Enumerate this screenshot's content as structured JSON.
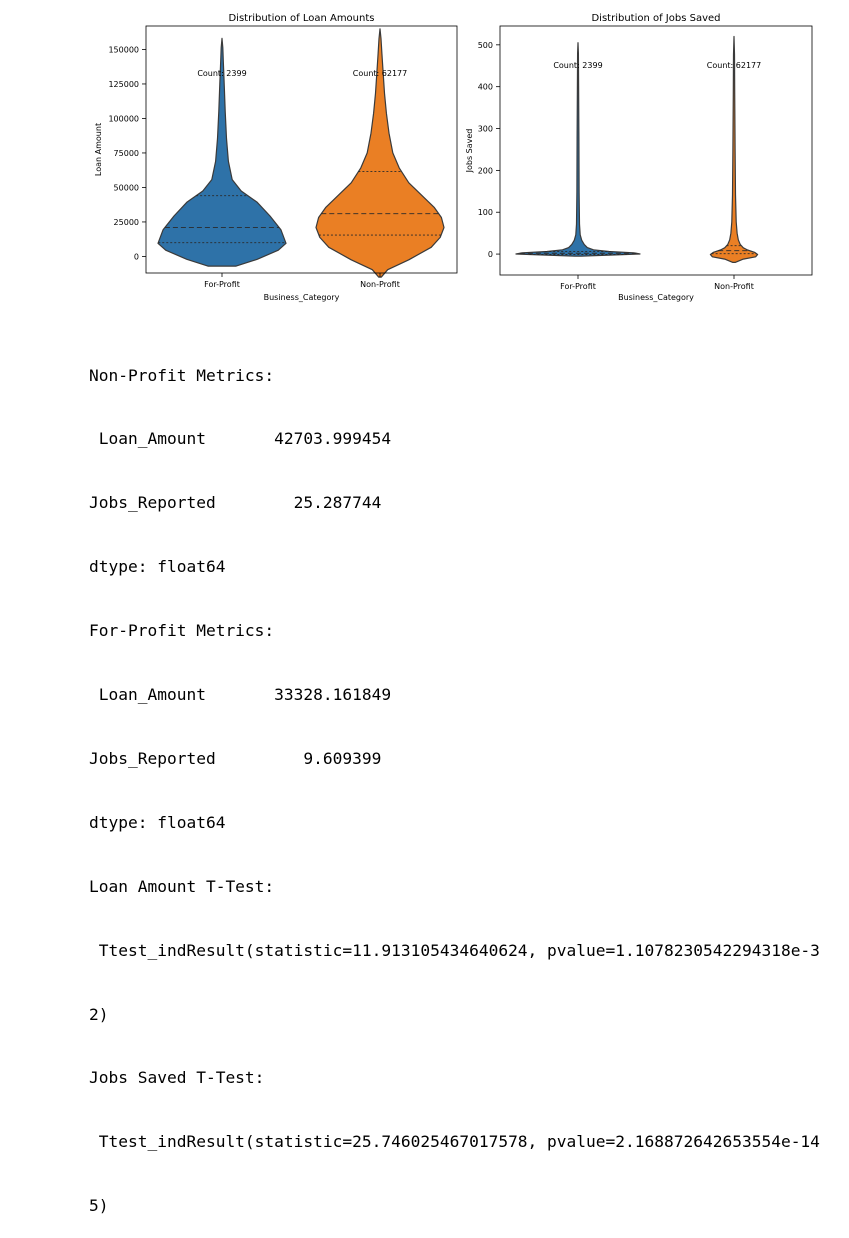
{
  "chart_data": [
    {
      "type": "violin",
      "title": "Distribution of Loan Amounts",
      "xlabel": "Business_Category",
      "ylabel": "Loan Amount",
      "categories": [
        "For-Profit",
        "Non-Profit"
      ],
      "yticks": [
        0,
        25000,
        50000,
        75000,
        100000,
        125000,
        150000
      ],
      "ytick_labels": [
        "0",
        "25000",
        "50000",
        "75000",
        "100000",
        "125000",
        "150000"
      ],
      "ylim": [
        -12000,
        167000
      ],
      "grid": false,
      "annotations": [
        "Count: 2399",
        "Count: 62177"
      ],
      "colors": [
        "#2e72a8",
        "#ea7f24"
      ],
      "violins": [
        {
          "category": "For-Profit",
          "color": "#2e72a8",
          "min": -7000,
          "max": 158000,
          "q1": 10000,
          "median": 21000,
          "q3": 44000,
          "count_label": "Count: 2399"
        },
        {
          "category": "Non-Profit",
          "color": "#ea7f24",
          "min": -15000,
          "max": 165000,
          "q1": 15500,
          "median": 31000,
          "q3": 61500,
          "count_label": "Count: 62177"
        }
      ]
    },
    {
      "type": "violin",
      "title": "Distribution of Jobs Saved",
      "xlabel": "Business_Category",
      "ylabel": "Jobs Saved",
      "categories": [
        "For-Profit",
        "Non-Profit"
      ],
      "yticks": [
        0,
        100,
        200,
        300,
        400,
        500
      ],
      "ytick_labels": [
        "0",
        "100",
        "200",
        "300",
        "400",
        "500"
      ],
      "ylim": [
        -50,
        545
      ],
      "grid": false,
      "annotations": [
        "Count: 2399",
        "Count: 62177"
      ],
      "colors": [
        "#2e72a8",
        "#ea7f24"
      ],
      "violins": [
        {
          "category": "For-Profit",
          "color": "#2e72a8",
          "min": -5,
          "max": 505,
          "q1": -1,
          "median": 2,
          "q3": 6,
          "count_label": "Count: 2399"
        },
        {
          "category": "Non-Profit",
          "color": "#ea7f24",
          "min": -20,
          "max": 520,
          "q1": 1,
          "median": 8,
          "q3": 20,
          "count_label": "Count: 62177"
        }
      ]
    }
  ],
  "console_lines": [
    "Non-Profit Metrics:",
    " Loan_Amount       42703.999454",
    "Jobs_Reported        25.287744",
    "dtype: float64",
    "For-Profit Metrics:",
    " Loan_Amount       33328.161849",
    "Jobs_Reported         9.609399",
    "dtype: float64",
    "Loan Amount T-Test:",
    " Ttest_indResult(statistic=11.913105434640624, pvalue=1.1078230542294318e-3",
    "2)",
    "Jobs Saved T-Test:",
    " Ttest_indResult(statistic=25.746025467017578, pvalue=2.168872642653554e-14",
    "5)"
  ]
}
